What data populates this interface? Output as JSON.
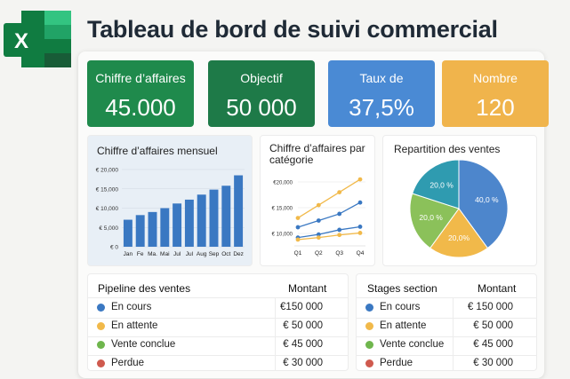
{
  "title": "Tableau de bord de suivi commercial",
  "logo": {
    "icon": "excel-icon",
    "letter": "X"
  },
  "colors": {
    "green1": "#1f8a4c",
    "green2": "#1e7a48",
    "blue": "#4a8ad4",
    "orange": "#f0b44c",
    "chart_blue": "#3a78c2",
    "pie_teal": "#2f9bb0",
    "pie_blue": "#4d86cc",
    "pie_yellow": "#f1b94a",
    "pie_green": "#8bc15a",
    "red": "#cf5a4e"
  },
  "kpis": [
    {
      "label": "Chiffre d’affaires",
      "value": "45.000",
      "color": "#1f8a4c"
    },
    {
      "label": "Objectif",
      "value": "50 000",
      "color": "#1e7a48"
    },
    {
      "label": "Taux de",
      "value": "37,5%",
      "color": "#4a8ad4"
    },
    {
      "label": "Nombre",
      "value": "120",
      "color": "#f0b44c"
    }
  ],
  "charts": {
    "monthly": {
      "title": "Chiffre d’affaires mensuel"
    },
    "category": {
      "title_line1": "Chiffre d’affaires par",
      "title_line2": "catégorie"
    },
    "pie": {
      "title": "Repartition des ventes"
    }
  },
  "chart_data": [
    {
      "type": "bar",
      "title": "Chiffre d’affaires mensuel",
      "categories": [
        "Jan",
        "Fe",
        "Ma.",
        "Mai",
        "Jul",
        "Jul",
        "Aug",
        "Sep",
        "Oct",
        "Dez"
      ],
      "values": [
        7000,
        8200,
        9000,
        10000,
        11200,
        12200,
        13500,
        14800,
        15800,
        18500
      ],
      "ylim": [
        0,
        20000
      ],
      "yticks": [
        "€ 0",
        "€ 5,000",
        "€ 10,000",
        "€ 15,000",
        "€ 20,000"
      ],
      "grid": true
    },
    {
      "type": "line",
      "title": "Chiffre d’affaires par catégorie",
      "categories": [
        "Q1",
        "Q2",
        "Q3",
        "Q4"
      ],
      "series": [
        {
          "values": [
            13000,
            15500,
            18000,
            20500
          ],
          "color": "#f1b94a"
        },
        {
          "values": [
            11200,
            12500,
            13800,
            16000
          ],
          "color": "#3a78c2"
        },
        {
          "values": [
            9200,
            9800,
            10700,
            11300
          ],
          "color": "#3a78c2"
        },
        {
          "values": [
            8800,
            9200,
            9700,
            10100
          ],
          "color": "#f1b94a"
        }
      ],
      "ylim": [
        10000,
        20000
      ],
      "yticks": [
        "€ 10,000",
        "€ 15,000",
        "€20,000"
      ],
      "grid": true
    },
    {
      "type": "pie",
      "title": "Repartition des ventes",
      "slices": [
        {
          "label": "40,0 %",
          "value": 40.0,
          "color": "#4d86cc"
        },
        {
          "label": "20,0%",
          "value": 20.0,
          "color": "#f1b94a"
        },
        {
          "label": "20,0 %",
          "value": 20.0,
          "color": "#8bc15a"
        },
        {
          "label": "20,0 %",
          "value": 20.0,
          "color": "#2f9bb0"
        }
      ]
    }
  ],
  "tables": [
    {
      "header_name": "Pipeline des ventes",
      "header_amount": "Montant",
      "rows": [
        {
          "name": "En cours",
          "amount": "€150 000",
          "color": "#3a78c2"
        },
        {
          "name": "En attente",
          "amount": "€ 50 000",
          "color": "#f1b94a"
        },
        {
          "name": "Vente conclue",
          "amount": "€ 45 000",
          "color": "#6fb64d"
        },
        {
          "name": "Perdue",
          "amount": "€ 30 000",
          "color": "#cf5a4e"
        }
      ]
    },
    {
      "header_name": "Stages section",
      "header_amount": "Montant",
      "rows": [
        {
          "name": "En cours",
          "amount": "€ 150 000",
          "color": "#3a78c2"
        },
        {
          "name": "En attente",
          "amount": "€ 50 000",
          "color": "#f1b94a"
        },
        {
          "name": "Vente conclue",
          "amount": "€ 45 000",
          "color": "#6fb64d"
        },
        {
          "name": "Perdue",
          "amount": "€ 30 000",
          "color": "#cf5a4e"
        }
      ]
    }
  ]
}
